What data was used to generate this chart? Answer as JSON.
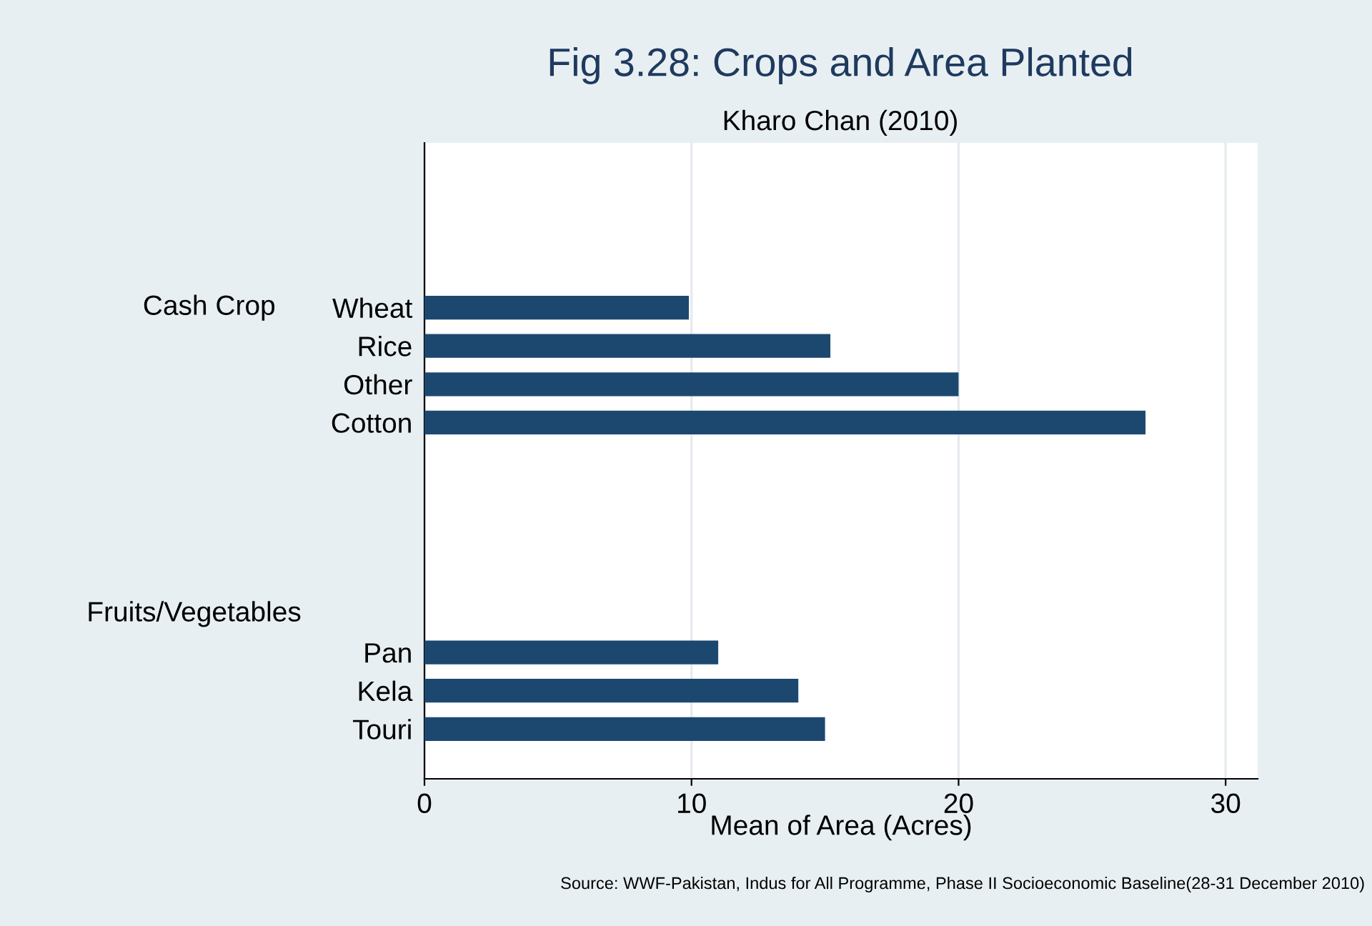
{
  "chart_data": {
    "type": "bar",
    "orientation": "horizontal",
    "title": "Fig 3.28: Crops and Area Planted",
    "subtitle": "Kharo Chan (2010)",
    "xlabel": "Mean of Area (Acres)",
    "categories": [
      "Wheat",
      "Rice",
      "Other",
      "Cotton",
      null,
      null,
      null,
      null,
      null,
      "Pan",
      "Kela",
      "Touri"
    ],
    "values": [
      9.9,
      15.2,
      20.0,
      27.0,
      null,
      null,
      null,
      null,
      null,
      11.0,
      14.0,
      15.0
    ],
    "color": "#1c4870",
    "xlim": [
      0,
      31.2
    ],
    "xticks": [
      0,
      10,
      20,
      30
    ],
    "grid": "x",
    "annotations": [
      "Cash Crop",
      "Fruits/Vegetables",
      "Source: WWF-Pakistan, Indus for All Programme, Phase II Socioeconomic Baseline(28-31 December 2010)"
    ]
  }
}
